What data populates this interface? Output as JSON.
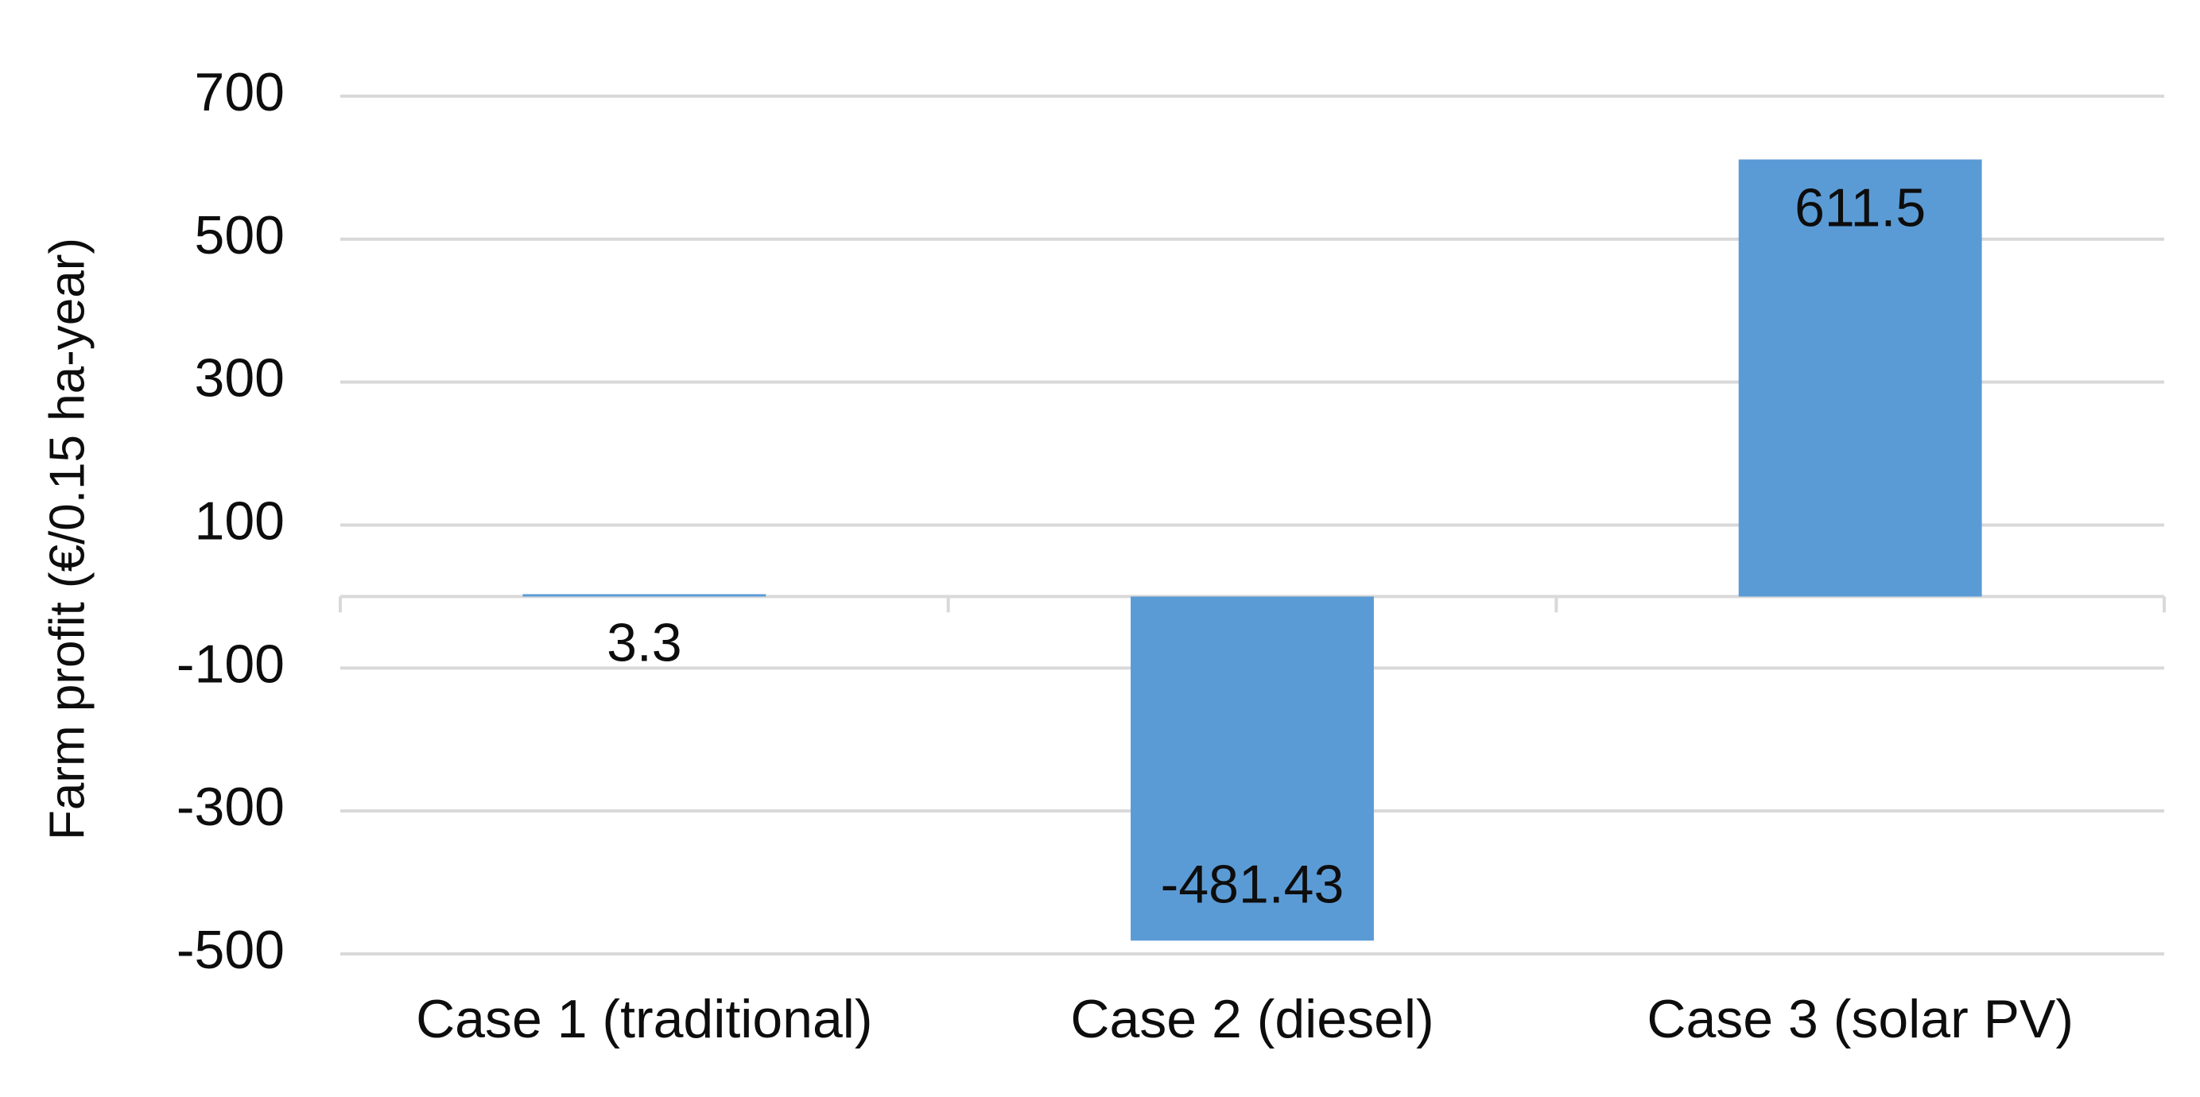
{
  "chart_data": {
    "type": "bar",
    "y_label": "Farm profit (€/0.15 ha-year)",
    "categories": [
      "Case 1 (traditional)",
      "Case 2 (diesel)",
      "Case 3 (solar PV)"
    ],
    "values": [
      3.3,
      -481.43,
      611.5
    ],
    "color": "#5b9bd5",
    "ylim": [
      -500,
      700
    ],
    "yticks": [
      -500,
      -300,
      -100,
      100,
      300,
      500,
      700
    ],
    "grid": true
  }
}
